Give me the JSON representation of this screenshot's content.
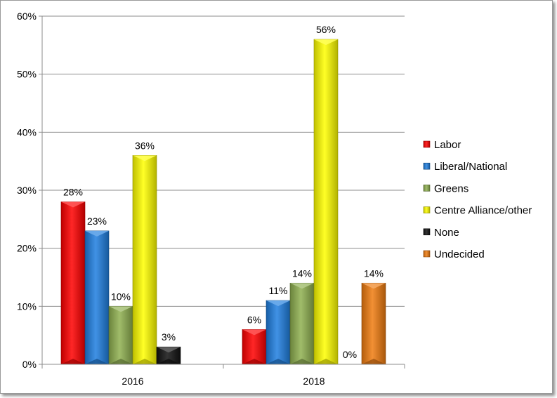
{
  "chart_data": {
    "type": "bar",
    "title": "",
    "xlabel": "",
    "ylabel": "",
    "categories": [
      "2016",
      "2018"
    ],
    "ylim": [
      0,
      60
    ],
    "yticks": [
      "0%",
      "10%",
      "20%",
      "30%",
      "40%",
      "50%",
      "60%"
    ],
    "grid": true,
    "legend_position": "right",
    "series": [
      {
        "name": "Labor",
        "color": "#ff0000",
        "values": [
          28,
          6
        ],
        "labels": [
          "28%",
          "6%"
        ]
      },
      {
        "name": "Liberal/National",
        "color": "#1f7fe0",
        "values": [
          23,
          11
        ],
        "labels": [
          "23%",
          "11%"
        ]
      },
      {
        "name": "Greens",
        "color": "#8fb050",
        "values": [
          10,
          14
        ],
        "labels": [
          "10%",
          "14%"
        ]
      },
      {
        "name": "Centre Alliance/other",
        "color": "#ffff00",
        "values": [
          36,
          56
        ],
        "labels": [
          "36%",
          "56%"
        ]
      },
      {
        "name": "None",
        "color": "#111111",
        "values": [
          3,
          0
        ],
        "labels": [
          "3%",
          "0%"
        ]
      },
      {
        "name": "Undecided",
        "color": "#f07c10",
        "values": [
          0,
          14
        ],
        "labels": [
          "",
          "14%"
        ]
      }
    ]
  }
}
